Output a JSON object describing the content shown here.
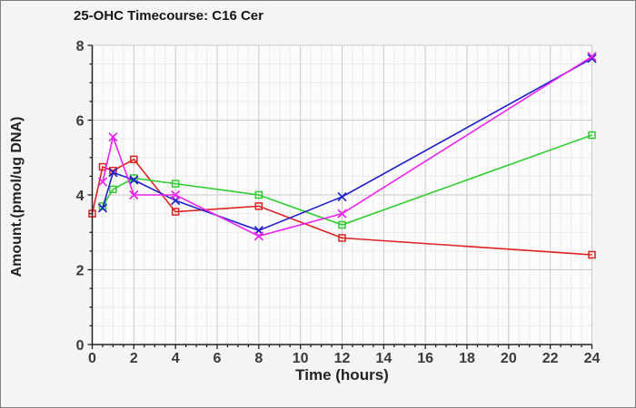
{
  "chart_data": {
    "type": "line",
    "title": "25-OHC Timecourse: C16 Cer",
    "xlabel": "Time (hours)",
    "ylabel": "Amount.(pmol/ug DNA)",
    "xlim": [
      0,
      24
    ],
    "ylim": [
      0,
      8
    ],
    "x_ticks": [
      0,
      2,
      4,
      6,
      8,
      10,
      12,
      14,
      16,
      18,
      20,
      22,
      24
    ],
    "y_ticks": [
      0,
      2,
      4,
      6,
      8
    ],
    "x_minor_step": 0.5,
    "y_minor_step": 0.5,
    "grid": true,
    "legend": "none",
    "series": [
      {
        "name": "red",
        "color": "#dd2222",
        "marker": "square",
        "points": [
          [
            0,
            3.5
          ],
          [
            0.5,
            4.75
          ],
          [
            1,
            4.65
          ],
          [
            2,
            4.95
          ],
          [
            4,
            3.55
          ],
          [
            8,
            3.7
          ],
          [
            12,
            2.85
          ],
          [
            24,
            2.4
          ]
        ]
      },
      {
        "name": "green",
        "color": "#2ecc2e",
        "marker": "square",
        "points": [
          [
            0.5,
            3.7
          ],
          [
            1,
            4.15
          ],
          [
            2,
            4.45
          ],
          [
            4,
            4.3
          ],
          [
            8,
            4.0
          ],
          [
            12,
            3.2
          ],
          [
            24,
            5.6
          ]
        ]
      },
      {
        "name": "blue",
        "color": "#2020cc",
        "marker": "x",
        "points": [
          [
            0.5,
            3.65
          ],
          [
            1,
            4.6
          ],
          [
            2,
            4.4
          ],
          [
            4,
            3.85
          ],
          [
            8,
            3.05
          ],
          [
            12,
            3.95
          ],
          [
            24,
            7.65
          ]
        ]
      },
      {
        "name": "magenta",
        "color": "#ee22ee",
        "marker": "x",
        "points": [
          [
            0.5,
            4.35
          ],
          [
            1,
            5.55
          ],
          [
            2,
            4.0
          ],
          [
            4,
            4.0
          ],
          [
            8,
            2.9
          ],
          [
            12,
            3.5
          ],
          [
            24,
            7.7
          ]
        ]
      }
    ],
    "style": {
      "figure_bg": "#f4f4f4",
      "plot_bg": "#fbfbfb",
      "grid_major_color": "#c9c9c9",
      "grid_minor_color": "#ebebeb",
      "axis_color": "#222222",
      "tick_label_color": "#3a3a3a"
    }
  }
}
